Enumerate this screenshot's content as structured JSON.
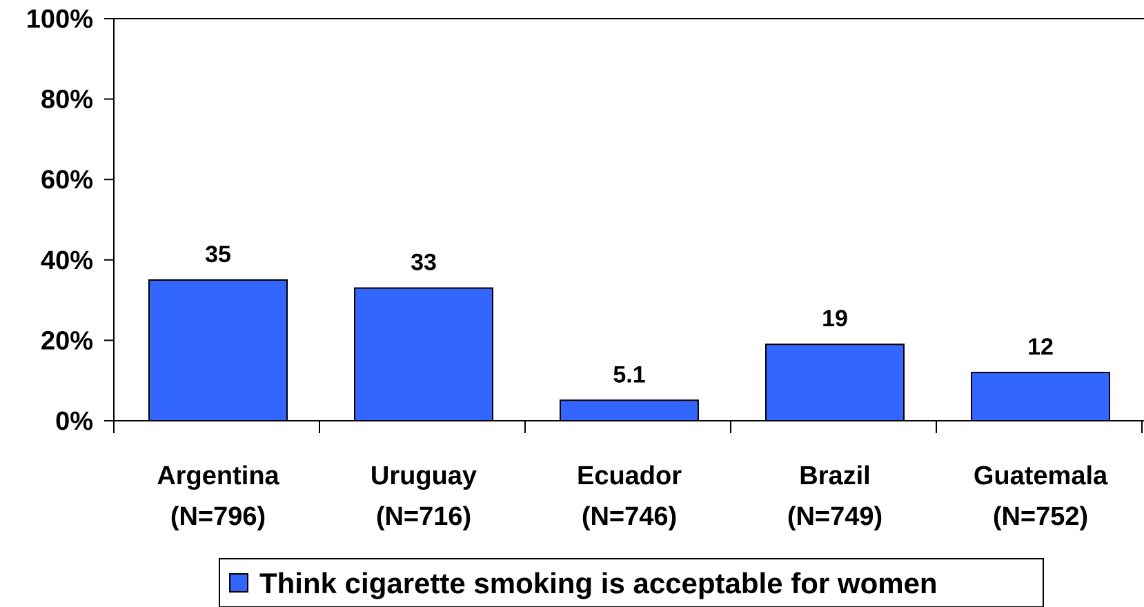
{
  "chart_data": {
    "type": "bar",
    "categories": [
      "Argentina",
      "Uruguay",
      "Ecuador",
      "Brazil",
      "Guatemala"
    ],
    "category_sublabels": [
      "(N=796)",
      "(N=716)",
      "(N=746)",
      "(N=749)",
      "(N=752)"
    ],
    "series": [
      {
        "name": "Think cigarette smoking is acceptable for women",
        "values": [
          35,
          33,
          5.1,
          19,
          12
        ],
        "data_labels": [
          "35",
          "33",
          "5.1",
          "19",
          "12"
        ],
        "color": "#3366ff"
      }
    ],
    "ylim": [
      0,
      100
    ],
    "yticks": [
      0,
      20,
      40,
      60,
      80,
      100
    ],
    "ytick_labels": [
      "0%",
      "20%",
      "40%",
      "60%",
      "80%",
      "100%"
    ],
    "title": "",
    "xlabel": "",
    "ylabel": "",
    "grid": false,
    "legend_position": "bottom-center"
  }
}
